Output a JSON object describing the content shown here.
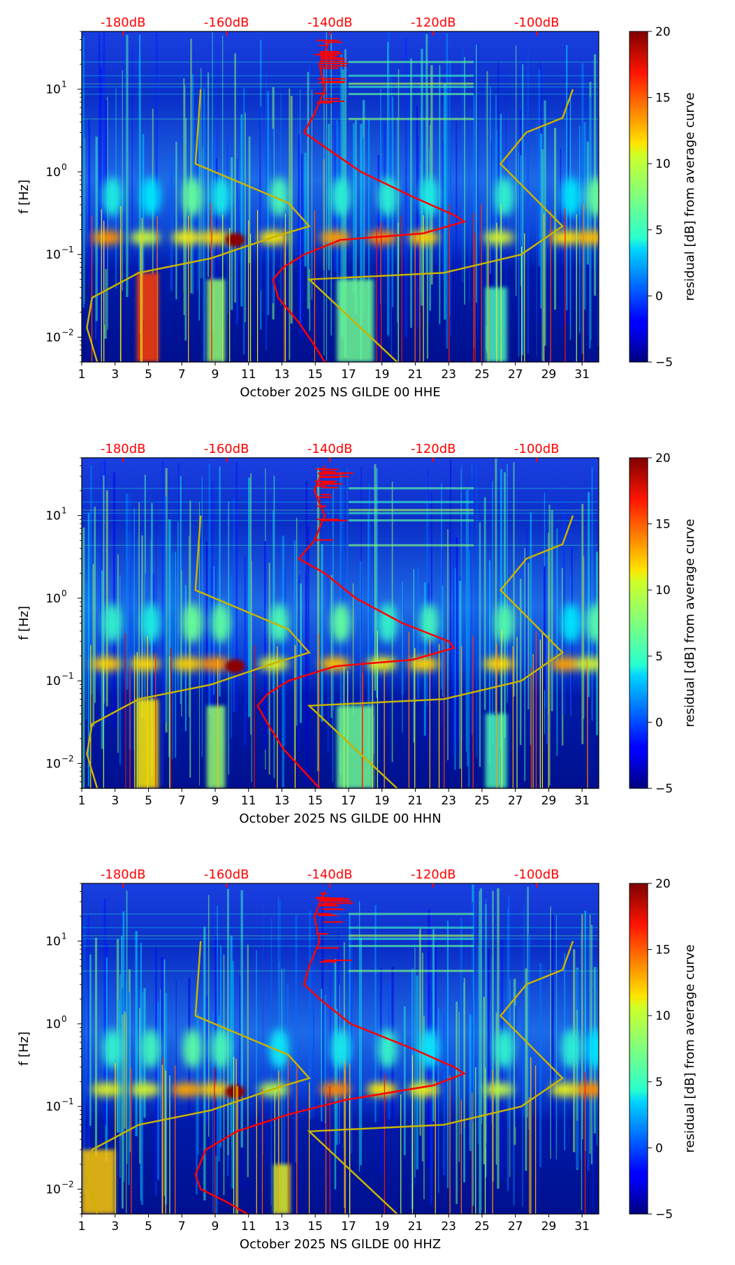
{
  "chart_data": [
    {
      "type": "heatmap",
      "xlabel": "October 2025 NS GILDE 00 HHE",
      "ylabel": "f [Hz]",
      "xlim": [
        1,
        32
      ],
      "ylim": [
        0.005,
        50
      ],
      "yscale": "log",
      "x_ticks": [
        "1",
        "3",
        "5",
        "7",
        "9",
        "11",
        "13",
        "15",
        "17",
        "19",
        "21",
        "23",
        "25",
        "27",
        "29",
        "31"
      ],
      "y_ticks": [
        {
          "value": 0.01,
          "base": "10",
          "exp": "−2"
        },
        {
          "value": 0.1,
          "base": "10",
          "exp": "−1"
        },
        {
          "value": 1,
          "base": "10",
          "exp": "0"
        },
        {
          "value": 10,
          "base": "10",
          "exp": "1"
        }
      ],
      "top_axis_ticks": [
        {
          "label": "-180dB",
          "value": -180
        },
        {
          "label": "-160dB",
          "value": -160
        },
        {
          "label": "-140dB",
          "value": -140
        },
        {
          "label": "-120dB",
          "value": -120
        },
        {
          "label": "-100dB",
          "value": -100
        }
      ],
      "top_axis_range_db": [
        -188,
        -88
      ],
      "colorbar": {
        "label": "residual [dB] from average curve",
        "min": -5,
        "max": 20,
        "ticks": [
          "20",
          "15",
          "10",
          "5",
          "0",
          "−5"
        ]
      },
      "noise_model_curve_db": [
        [
          10,
          -165
        ],
        [
          1.25,
          -166
        ],
        [
          0.42,
          -148
        ],
        [
          0.22,
          -144
        ],
        [
          0.17,
          -150
        ],
        [
          0.09,
          -163
        ],
        [
          0.06,
          -177
        ],
        [
          0.03,
          -186
        ],
        [
          0.013,
          -187
        ],
        [
          0.005,
          -185
        ]
      ],
      "noise_model_curve_right_db": [
        [
          10,
          -93
        ],
        [
          4.5,
          -95
        ],
        [
          3,
          -102
        ],
        [
          1.25,
          -107
        ],
        [
          0.22,
          -95
        ],
        [
          0.1,
          -103
        ],
        [
          0.06,
          -118
        ],
        [
          0.05,
          -144
        ],
        [
          0.005,
          -127
        ]
      ],
      "average_psd_curve_db": [
        [
          40,
          -140
        ],
        [
          20,
          -142
        ],
        [
          10,
          -141
        ],
        [
          5,
          -143
        ],
        [
          3,
          -145
        ],
        [
          2,
          -141
        ],
        [
          1,
          -134
        ],
        [
          0.5,
          -124
        ],
        [
          0.3,
          -116
        ],
        [
          0.25,
          -114
        ],
        [
          0.18,
          -122
        ],
        [
          0.15,
          -138
        ],
        [
          0.1,
          -145
        ],
        [
          0.07,
          -149
        ],
        [
          0.05,
          -151
        ],
        [
          0.03,
          -150
        ],
        [
          0.015,
          -146
        ],
        [
          0.008,
          -143
        ],
        [
          0.005,
          -141
        ]
      ]
    },
    {
      "type": "heatmap",
      "xlabel": "October 2025 NS GILDE 00 HHN",
      "ylabel": "f [Hz]",
      "xlim": [
        1,
        32
      ],
      "ylim": [
        0.005,
        50
      ],
      "yscale": "log",
      "x_ticks": [
        "1",
        "3",
        "5",
        "7",
        "9",
        "11",
        "13",
        "15",
        "17",
        "19",
        "21",
        "23",
        "25",
        "27",
        "29",
        "31"
      ],
      "y_ticks": [
        {
          "value": 0.01,
          "base": "10",
          "exp": "−2"
        },
        {
          "value": 0.1,
          "base": "10",
          "exp": "−1"
        },
        {
          "value": 1,
          "base": "10",
          "exp": "0"
        },
        {
          "value": 10,
          "base": "10",
          "exp": "1"
        }
      ],
      "top_axis_ticks": [
        {
          "label": "-180dB",
          "value": -180
        },
        {
          "label": "-160dB",
          "value": -160
        },
        {
          "label": "-140dB",
          "value": -140
        },
        {
          "label": "-120dB",
          "value": -120
        },
        {
          "label": "-100dB",
          "value": -100
        }
      ],
      "top_axis_range_db": [
        -188,
        -88
      ],
      "colorbar": {
        "label": "residual [dB] from average curve",
        "min": -5,
        "max": 20,
        "ticks": [
          "20",
          "15",
          "10",
          "5",
          "0",
          "−5"
        ]
      },
      "noise_model_curve_db": [
        [
          10,
          -165
        ],
        [
          1.25,
          -166
        ],
        [
          0.42,
          -148
        ],
        [
          0.22,
          -144
        ],
        [
          0.17,
          -150
        ],
        [
          0.09,
          -163
        ],
        [
          0.06,
          -177
        ],
        [
          0.03,
          -186
        ],
        [
          0.013,
          -187
        ],
        [
          0.005,
          -185
        ]
      ],
      "noise_model_curve_right_db": [
        [
          10,
          -93
        ],
        [
          4.5,
          -95
        ],
        [
          3,
          -102
        ],
        [
          1.25,
          -107
        ],
        [
          0.22,
          -95
        ],
        [
          0.1,
          -103
        ],
        [
          0.06,
          -118
        ],
        [
          0.05,
          -144
        ],
        [
          0.005,
          -127
        ]
      ],
      "average_psd_curve_db": [
        [
          40,
          -141
        ],
        [
          20,
          -143
        ],
        [
          10,
          -141
        ],
        [
          5,
          -143
        ],
        [
          3,
          -146
        ],
        [
          2,
          -141
        ],
        [
          1,
          -135
        ],
        [
          0.5,
          -126
        ],
        [
          0.3,
          -117
        ],
        [
          0.25,
          -116
        ],
        [
          0.18,
          -124
        ],
        [
          0.15,
          -139
        ],
        [
          0.1,
          -148
        ],
        [
          0.07,
          -152
        ],
        [
          0.05,
          -154
        ],
        [
          0.03,
          -152
        ],
        [
          0.015,
          -149
        ],
        [
          0.008,
          -145
        ],
        [
          0.005,
          -142
        ]
      ]
    },
    {
      "type": "heatmap",
      "xlabel": "October 2025 NS GILDE 00 HHZ",
      "ylabel": "f [Hz]",
      "xlim": [
        1,
        32
      ],
      "ylim": [
        0.005,
        50
      ],
      "yscale": "log",
      "x_ticks": [
        "1",
        "3",
        "5",
        "7",
        "9",
        "11",
        "13",
        "15",
        "17",
        "19",
        "21",
        "23",
        "25",
        "27",
        "29",
        "31"
      ],
      "y_ticks": [
        {
          "value": 0.01,
          "base": "10",
          "exp": "−2"
        },
        {
          "value": 0.1,
          "base": "10",
          "exp": "−1"
        },
        {
          "value": 1,
          "base": "10",
          "exp": "0"
        },
        {
          "value": 10,
          "base": "10",
          "exp": "1"
        }
      ],
      "top_axis_ticks": [
        {
          "label": "-180dB",
          "value": -180
        },
        {
          "label": "-160dB",
          "value": -160
        },
        {
          "label": "-140dB",
          "value": -140
        },
        {
          "label": "-120dB",
          "value": -120
        },
        {
          "label": "-100dB",
          "value": -100
        }
      ],
      "top_axis_range_db": [
        -188,
        -88
      ],
      "colorbar": {
        "label": "residual [dB] from average curve",
        "min": -5,
        "max": 20,
        "ticks": [
          "20",
          "15",
          "10",
          "5",
          "0",
          "−5"
        ]
      },
      "noise_model_curve_db": [
        [
          10,
          -165
        ],
        [
          1.25,
          -166
        ],
        [
          0.42,
          -148
        ],
        [
          0.22,
          -144
        ],
        [
          0.17,
          -150
        ],
        [
          0.09,
          -163
        ],
        [
          0.06,
          -177
        ],
        [
          0.03,
          -186
        ],
        [
          0.013,
          -187
        ],
        [
          0.005,
          -185
        ]
      ],
      "noise_model_curve_right_db": [
        [
          10,
          -93
        ],
        [
          4.5,
          -95
        ],
        [
          3,
          -102
        ],
        [
          1.25,
          -107
        ],
        [
          0.22,
          -95
        ],
        [
          0.1,
          -103
        ],
        [
          0.06,
          -118
        ],
        [
          0.05,
          -144
        ],
        [
          0.005,
          -127
        ]
      ],
      "average_psd_curve_db": [
        [
          40,
          -141
        ],
        [
          20,
          -143
        ],
        [
          10,
          -142
        ],
        [
          5,
          -144
        ],
        [
          3,
          -145
        ],
        [
          2,
          -142
        ],
        [
          1,
          -136
        ],
        [
          0.5,
          -124
        ],
        [
          0.3,
          -116
        ],
        [
          0.25,
          -114
        ],
        [
          0.18,
          -120
        ],
        [
          0.12,
          -137
        ],
        [
          0.08,
          -148
        ],
        [
          0.05,
          -158
        ],
        [
          0.03,
          -164
        ],
        [
          0.015,
          -166
        ],
        [
          0.01,
          -165
        ],
        [
          0.007,
          -160
        ],
        [
          0.005,
          -156
        ]
      ]
    }
  ],
  "colors": {
    "top_axis": "#ff0000",
    "average_curve": "#ff0000",
    "model_curve": "#c8b400"
  }
}
